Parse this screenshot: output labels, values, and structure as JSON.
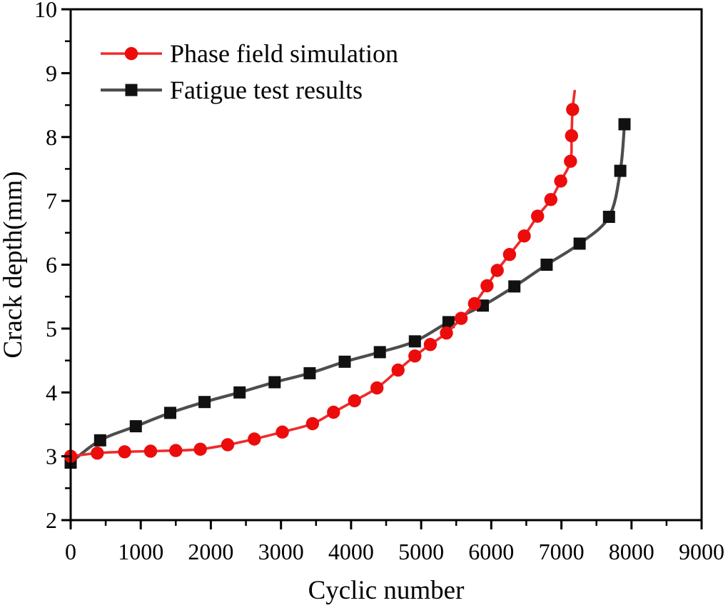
{
  "chart_data": {
    "type": "line",
    "title": "",
    "xlabel": "Cyclic number",
    "ylabel": "Crack depth(mm)",
    "xlim": [
      0,
      9000
    ],
    "ylim": [
      2,
      10
    ],
    "x_major_step": 1000,
    "x_minor_step": 500,
    "y_major_step": 1,
    "y_minor_step": 0.5,
    "grid": "off",
    "frame": "full-box",
    "legend_position": "top-left-inside",
    "axis_color": "#000000",
    "series": [
      {
        "name": "Phase field simulation",
        "marker": "circle",
        "marker_size": 9.2,
        "line_color": "#ef2b2b",
        "marker_color": "#ec0c0c",
        "line_width": 3.6,
        "points": [
          [
            0,
            3.0
          ],
          [
            380,
            3.05
          ],
          [
            770,
            3.07
          ],
          [
            1140,
            3.08
          ],
          [
            1500,
            3.09
          ],
          [
            1850,
            3.11
          ],
          [
            2240,
            3.18
          ],
          [
            2620,
            3.27
          ],
          [
            3020,
            3.38
          ],
          [
            3450,
            3.51
          ],
          [
            3750,
            3.69
          ],
          [
            4050,
            3.87
          ],
          [
            4370,
            4.07
          ],
          [
            4670,
            4.35
          ],
          [
            4910,
            4.57
          ],
          [
            5130,
            4.75
          ],
          [
            5360,
            4.93
          ],
          [
            5570,
            5.16
          ],
          [
            5760,
            5.39
          ],
          [
            5940,
            5.67
          ],
          [
            6085,
            5.91
          ],
          [
            6260,
            6.16
          ],
          [
            6470,
            6.45
          ],
          [
            6660,
            6.76
          ],
          [
            6850,
            7.02
          ],
          [
            6990,
            7.31
          ],
          [
            7130,
            7.62
          ],
          [
            7145,
            8.02
          ],
          [
            7160,
            8.43
          ]
        ],
        "line_tail": [
          [
            7190,
            8.72
          ]
        ]
      },
      {
        "name": "Fatigue test results",
        "marker": "square",
        "marker_size": 17,
        "line_color": "#4d4d4d",
        "marker_color": "#111111",
        "line_width": 4.2,
        "points": [
          [
            0,
            2.9
          ],
          [
            420,
            3.25
          ],
          [
            930,
            3.47
          ],
          [
            1420,
            3.68
          ],
          [
            1910,
            3.85
          ],
          [
            2410,
            4.0
          ],
          [
            2910,
            4.16
          ],
          [
            3410,
            4.3
          ],
          [
            3910,
            4.48
          ],
          [
            4410,
            4.63
          ],
          [
            4910,
            4.8
          ],
          [
            5390,
            5.1
          ],
          [
            5880,
            5.36
          ],
          [
            6330,
            5.66
          ],
          [
            6790,
            6.0
          ],
          [
            7260,
            6.33
          ],
          [
            7680,
            6.75
          ],
          [
            7840,
            7.47
          ],
          [
            7900,
            8.2
          ]
        ],
        "line_tail": []
      }
    ]
  }
}
